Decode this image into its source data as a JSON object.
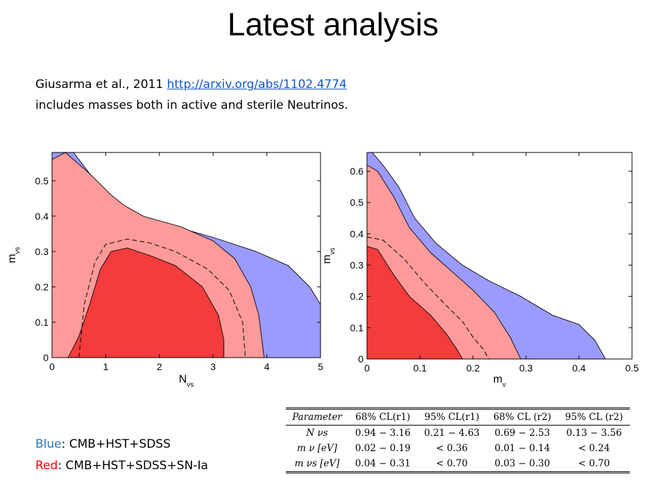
{
  "title": "Latest analysis",
  "reference": {
    "citation": "Giusarma et al., 2011",
    "link": "http://arxiv.org/abs/1102.4774",
    "description": "includes masses both in active and sterile Neutrinos."
  },
  "legend": {
    "blue_name": "Blue",
    "blue_text": ": CMB+HST+SDSS",
    "red_name": "Red",
    "red_text": ":   CMB+HST+SDSS+SN-Ia",
    "colors": {
      "blue": "#2e75b6",
      "red": "#ff0000"
    }
  },
  "colors": {
    "blue_fill": "#9b9bff",
    "pink_fill": "#ff9a9a",
    "red_fill": "#f43c3c"
  },
  "chart_data": [
    {
      "type": "contour",
      "xlabel": "N",
      "xlabel_sub": "νs",
      "ylabel": "m",
      "ylabel_sub": "νs",
      "xlim": [
        0,
        5
      ],
      "ylim": [
        0,
        0.58
      ],
      "xticks": [
        0,
        1,
        2,
        3,
        4,
        5
      ],
      "yticks": [
        0,
        0.1,
        0.2,
        0.3,
        0.4,
        0.5
      ],
      "regions": [
        {
          "name": "blue 95%",
          "color": "blue",
          "points": [
            [
              0,
              0
            ],
            [
              0,
              0.58
            ],
            [
              0.4,
              0.58
            ],
            [
              0.95,
              0.47
            ],
            [
              1.4,
              0.4
            ],
            [
              2.3,
              0.37
            ],
            [
              3.0,
              0.34
            ],
            [
              3.8,
              0.3
            ],
            [
              4.4,
              0.26
            ],
            [
              4.8,
              0.2
            ],
            [
              5.0,
              0.15
            ],
            [
              5.0,
              0
            ]
          ]
        },
        {
          "name": "pink 95%",
          "color": "pink",
          "points": [
            [
              0,
              0
            ],
            [
              0,
              0.56
            ],
            [
              0.25,
              0.58
            ],
            [
              0.7,
              0.52
            ],
            [
              1.1,
              0.46
            ],
            [
              1.35,
              0.43
            ],
            [
              1.7,
              0.4
            ],
            [
              2.4,
              0.37
            ],
            [
              3.0,
              0.33
            ],
            [
              3.4,
              0.28
            ],
            [
              3.7,
              0.2
            ],
            [
              3.85,
              0.12
            ],
            [
              3.95,
              0
            ]
          ]
        },
        {
          "name": "red 68%",
          "color": "red",
          "points": [
            [
              0.3,
              0
            ],
            [
              0.5,
              0.06
            ],
            [
              0.7,
              0.15
            ],
            [
              0.9,
              0.25
            ],
            [
              1.1,
              0.3
            ],
            [
              1.4,
              0.31
            ],
            [
              1.8,
              0.29
            ],
            [
              2.3,
              0.26
            ],
            [
              2.8,
              0.2
            ],
            [
              3.1,
              0.12
            ],
            [
              3.2,
              0.05
            ],
            [
              3.2,
              0
            ]
          ]
        }
      ],
      "dashed": [
        [
          0.5,
          0
        ],
        [
          0.6,
          0.15
        ],
        [
          0.8,
          0.27
        ],
        [
          1.0,
          0.32
        ],
        [
          1.4,
          0.335
        ],
        [
          1.8,
          0.325
        ],
        [
          2.3,
          0.3
        ],
        [
          2.9,
          0.25
        ],
        [
          3.3,
          0.19
        ],
        [
          3.55,
          0.1
        ],
        [
          3.6,
          0
        ]
      ]
    },
    {
      "type": "contour",
      "xlabel": "m",
      "xlabel_sub": "ν",
      "ylabel": "m",
      "ylabel_sub": "νs",
      "xlim": [
        0,
        0.5
      ],
      "ylim": [
        0,
        0.66
      ],
      "xticks": [
        0,
        0.1,
        0.2,
        0.3,
        0.4,
        0.5
      ],
      "yticks": [
        0,
        0.1,
        0.2,
        0.3,
        0.4,
        0.5,
        0.6
      ],
      "regions": [
        {
          "name": "blue 95%",
          "color": "blue",
          "points": [
            [
              0,
              0
            ],
            [
              0,
              0.66
            ],
            [
              0.01,
              0.66
            ],
            [
              0.03,
              0.62
            ],
            [
              0.06,
              0.55
            ],
            [
              0.09,
              0.45
            ],
            [
              0.13,
              0.37
            ],
            [
              0.18,
              0.3
            ],
            [
              0.23,
              0.25
            ],
            [
              0.29,
              0.2
            ],
            [
              0.35,
              0.14
            ],
            [
              0.4,
              0.11
            ],
            [
              0.43,
              0.06
            ],
            [
              0.45,
              0
            ]
          ]
        },
        {
          "name": "pink 95%",
          "color": "pink",
          "points": [
            [
              0,
              0
            ],
            [
              0,
              0.62
            ],
            [
              0.02,
              0.6
            ],
            [
              0.05,
              0.52
            ],
            [
              0.08,
              0.42
            ],
            [
              0.12,
              0.34
            ],
            [
              0.16,
              0.28
            ],
            [
              0.2,
              0.22
            ],
            [
              0.24,
              0.15
            ],
            [
              0.27,
              0.07
            ],
            [
              0.29,
              0
            ]
          ]
        },
        {
          "name": "red 68%",
          "color": "red",
          "points": [
            [
              0,
              0
            ],
            [
              0,
              0.36
            ],
            [
              0.02,
              0.35
            ],
            [
              0.05,
              0.27
            ],
            [
              0.08,
              0.2
            ],
            [
              0.12,
              0.14
            ],
            [
              0.15,
              0.08
            ],
            [
              0.17,
              0.03
            ],
            [
              0.18,
              0
            ]
          ]
        }
      ],
      "dashed": [
        [
          0,
          0.39
        ],
        [
          0.03,
          0.38
        ],
        [
          0.07,
          0.32
        ],
        [
          0.11,
          0.24
        ],
        [
          0.15,
          0.17
        ],
        [
          0.18,
          0.12
        ],
        [
          0.2,
          0.07
        ],
        [
          0.22,
          0.03
        ],
        [
          0.23,
          0
        ]
      ]
    }
  ],
  "table": {
    "headers": [
      "Parameter",
      "68% CL(r1)",
      "95% CL(r1)",
      "68% CL (r2)",
      "95% CL (r2)"
    ],
    "rows": [
      [
        "N νs",
        "0.94 − 3.16",
        "0.21 − 4.63",
        "0.69 − 2.53",
        "0.13 − 3.56"
      ],
      [
        "m ν [eV]",
        "0.02 − 0.19",
        "< 0.36",
        "0.01 − 0.14",
        "< 0.24"
      ],
      [
        "m νs [eV]",
        "0.04 − 0.31",
        "< 0.70",
        "0.03 − 0.30",
        "< 0.70"
      ]
    ]
  }
}
